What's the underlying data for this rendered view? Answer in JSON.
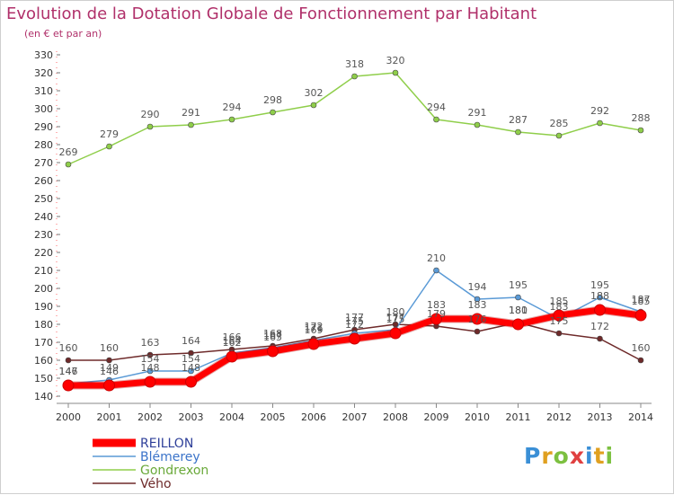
{
  "header": {
    "title": "Evolution de la Dotation Globale de Fonctionnement par Habitant",
    "subtitle": "(en € et par an)"
  },
  "logo": {
    "text": "Proxiti"
  },
  "chart_data": {
    "type": "line",
    "title": "Evolution de la Dotation Globale de Fonctionnement par Habitant",
    "subtitle": "(en € et par an)",
    "x": [
      2000,
      2001,
      2002,
      2003,
      2004,
      2005,
      2006,
      2007,
      2008,
      2009,
      2010,
      2011,
      2012,
      2013,
      2014
    ],
    "ylim": [
      140,
      330
    ],
    "ytick_step": 10,
    "grid": false,
    "legend_position": "bottom-left",
    "series": [
      {
        "name": "Gondrexon",
        "color": "#8fce4a",
        "values": [
          269,
          279,
          290,
          291,
          294,
          298,
          302,
          318,
          320,
          294,
          291,
          287,
          285,
          292,
          288
        ]
      },
      {
        "name": "Vého",
        "color": "#6e2a2a",
        "values": [
          160,
          160,
          163,
          164,
          166,
          168,
          172,
          177,
          180,
          179,
          176,
          181,
          175,
          172,
          160
        ]
      },
      {
        "name": "Blémerey",
        "color": "#5a9ad6",
        "values": [
          147,
          149,
          154,
          154,
          164,
          167,
          171,
          175,
          177,
          210,
          194,
          195,
          183,
          195,
          187
        ]
      },
      {
        "name": "REILLON",
        "color": "#ff0000",
        "values": [
          146,
          146,
          148,
          148,
          162,
          165,
          169,
          172,
          175,
          183,
          183,
          180,
          185,
          188,
          185
        ]
      }
    ]
  }
}
